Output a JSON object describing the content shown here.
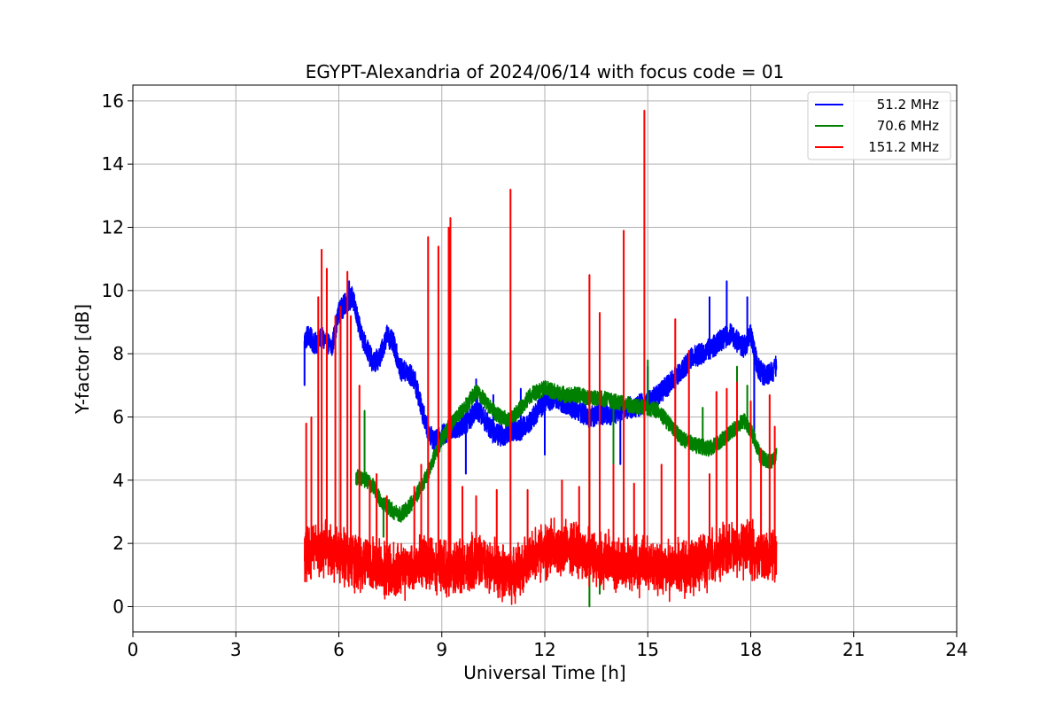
{
  "chart_data": {
    "type": "line",
    "title": "EGYPT-Alexandria of 2024/06/14 with focus code = 01",
    "xlabel": "Universal Time [h]",
    "ylabel": "Y-factor [dB]",
    "xlim": [
      0,
      24
    ],
    "ylim": [
      -0.8,
      16.5
    ],
    "xticks": [
      0,
      3,
      6,
      9,
      12,
      15,
      18,
      21,
      24
    ],
    "yticks": [
      0,
      2,
      4,
      6,
      8,
      10,
      12,
      14,
      16
    ],
    "grid": true,
    "legend_position": "top-right",
    "series": [
      {
        "name": "51.2 MHz",
        "color": "#0000ff",
        "noise": 0.35,
        "x": [
          5.0,
          5.1,
          5.3,
          5.5,
          5.8,
          6.0,
          6.2,
          6.4,
          6.6,
          6.8,
          7.0,
          7.2,
          7.4,
          7.6,
          7.8,
          8.0,
          8.2,
          8.4,
          8.6,
          8.8,
          9.0,
          9.2,
          9.5,
          9.8,
          10.0,
          10.2,
          10.5,
          10.8,
          11.0,
          11.3,
          11.6,
          12.0,
          12.3,
          12.6,
          13.0,
          13.3,
          13.6,
          14.0,
          14.3,
          14.6,
          15.0,
          15.3,
          15.6,
          16.0,
          16.3,
          16.6,
          17.0,
          17.2,
          17.4,
          17.6,
          17.8,
          18.0,
          18.2,
          18.4,
          18.6,
          18.75
        ],
        "y": [
          8.4,
          8.6,
          8.3,
          8.5,
          8.2,
          9.3,
          9.6,
          9.8,
          8.8,
          8.2,
          7.7,
          7.9,
          8.6,
          8.3,
          7.5,
          7.4,
          7.2,
          6.3,
          5.6,
          5.2,
          5.4,
          5.6,
          5.7,
          5.9,
          6.3,
          6.0,
          5.5,
          5.4,
          5.6,
          5.6,
          5.9,
          6.5,
          6.6,
          6.4,
          6.2,
          6.0,
          6.1,
          6.1,
          6.3,
          6.3,
          6.5,
          6.7,
          7.0,
          7.5,
          7.9,
          8.0,
          8.3,
          8.5,
          8.6,
          8.4,
          8.2,
          8.6,
          7.6,
          7.3,
          7.4,
          7.6
        ],
        "spikes": [
          [
            5.0,
            7.0
          ],
          [
            6.3,
            10.3
          ],
          [
            9.7,
            4.2
          ],
          [
            10.0,
            7.2
          ],
          [
            10.5,
            6.7
          ],
          [
            11.3,
            6.9
          ],
          [
            12.0,
            4.8
          ],
          [
            14.2,
            4.5
          ],
          [
            15.0,
            7.6
          ],
          [
            16.8,
            9.8
          ],
          [
            17.3,
            10.3
          ],
          [
            17.9,
            9.8
          ],
          [
            18.1,
            5.5
          ]
        ]
      },
      {
        "name": "70.6 MHz",
        "color": "#008000",
        "noise": 0.25,
        "x": [
          6.5,
          6.8,
          7.0,
          7.2,
          7.4,
          7.6,
          7.8,
          8.0,
          8.2,
          8.4,
          8.6,
          8.8,
          9.0,
          9.3,
          9.6,
          9.8,
          10.0,
          10.2,
          10.4,
          10.7,
          11.0,
          11.3,
          11.6,
          12.0,
          12.3,
          12.6,
          13.0,
          13.3,
          13.6,
          14.0,
          14.4,
          14.8,
          15.0,
          15.3,
          15.6,
          16.0,
          16.4,
          16.8,
          17.2,
          17.5,
          17.8,
          18.0,
          18.3,
          18.6,
          18.75
        ],
        "y": [
          4.1,
          4.0,
          3.8,
          3.4,
          3.2,
          3.0,
          2.9,
          3.1,
          3.4,
          3.8,
          4.2,
          4.8,
          5.3,
          5.8,
          6.2,
          6.5,
          6.8,
          6.6,
          6.3,
          6.0,
          5.9,
          6.3,
          6.7,
          6.9,
          6.8,
          6.7,
          6.7,
          6.6,
          6.6,
          6.5,
          6.4,
          6.3,
          6.3,
          6.2,
          5.8,
          5.3,
          5.1,
          5.0,
          5.3,
          5.6,
          5.9,
          5.6,
          4.7,
          4.6,
          4.8
        ],
        "spikes": [
          [
            6.75,
            6.2
          ],
          [
            7.3,
            2.2
          ],
          [
            13.3,
            0.0
          ],
          [
            13.6,
            0.4
          ],
          [
            14.0,
            3.2
          ],
          [
            15.0,
            7.8
          ],
          [
            16.6,
            6.3
          ],
          [
            17.6,
            7.6
          ],
          [
            17.9,
            7.0
          ]
        ]
      },
      {
        "name": "151.2 MHz",
        "color": "#ff0000",
        "noise": 0.7,
        "x": [
          5.0,
          5.3,
          5.6,
          5.9,
          6.2,
          6.5,
          6.8,
          7.1,
          7.4,
          7.7,
          8.0,
          8.3,
          8.6,
          8.9,
          9.2,
          9.5,
          9.8,
          10.1,
          10.4,
          10.7,
          11.0,
          11.3,
          11.6,
          12.0,
          12.4,
          12.8,
          13.2,
          13.6,
          14.0,
          14.4,
          14.8,
          15.2,
          15.6,
          16.0,
          16.4,
          16.8,
          17.2,
          17.6,
          18.0,
          18.3,
          18.6,
          18.75
        ],
        "y": [
          1.6,
          1.9,
          1.8,
          1.7,
          1.6,
          1.4,
          1.3,
          1.2,
          1.1,
          1.1,
          1.2,
          1.3,
          1.4,
          1.3,
          1.2,
          1.2,
          1.3,
          1.4,
          1.3,
          1.1,
          1.0,
          1.2,
          1.5,
          1.8,
          1.9,
          1.8,
          1.6,
          1.5,
          1.4,
          1.4,
          1.3,
          1.3,
          1.2,
          1.2,
          1.3,
          1.5,
          1.7,
          1.9,
          1.8,
          1.6,
          1.5,
          1.6
        ],
        "spikes": [
          [
            5.05,
            5.8
          ],
          [
            5.2,
            6.0
          ],
          [
            5.4,
            9.8
          ],
          [
            5.5,
            11.3
          ],
          [
            5.65,
            10.7
          ],
          [
            5.9,
            9.2
          ],
          [
            6.05,
            9.5
          ],
          [
            6.25,
            10.6
          ],
          [
            6.35,
            9.2
          ],
          [
            6.6,
            7.0
          ],
          [
            6.9,
            4.0
          ],
          [
            7.1,
            4.2
          ],
          [
            7.4,
            3.5
          ],
          [
            8.2,
            3.8
          ],
          [
            8.4,
            4.5
          ],
          [
            8.6,
            11.7
          ],
          [
            8.9,
            11.4
          ],
          [
            9.2,
            12.0
          ],
          [
            9.25,
            12.3
          ],
          [
            9.6,
            3.8
          ],
          [
            10.0,
            3.5
          ],
          [
            10.6,
            3.7
          ],
          [
            11.0,
            13.2
          ],
          [
            11.5,
            3.7
          ],
          [
            12.5,
            4.0
          ],
          [
            13.0,
            3.8
          ],
          [
            13.3,
            10.5
          ],
          [
            13.6,
            9.3
          ],
          [
            14.0,
            4.5
          ],
          [
            14.3,
            11.9
          ],
          [
            14.6,
            3.9
          ],
          [
            14.9,
            15.7
          ],
          [
            15.4,
            4.5
          ],
          [
            15.8,
            9.1
          ],
          [
            16.2,
            8.1
          ],
          [
            16.8,
            4.2
          ],
          [
            17.0,
            6.8
          ],
          [
            17.3,
            6.9
          ],
          [
            17.6,
            7.1
          ],
          [
            18.0,
            6.5
          ],
          [
            18.3,
            5.0
          ],
          [
            18.55,
            6.7
          ],
          [
            18.7,
            5.7
          ]
        ]
      }
    ]
  }
}
